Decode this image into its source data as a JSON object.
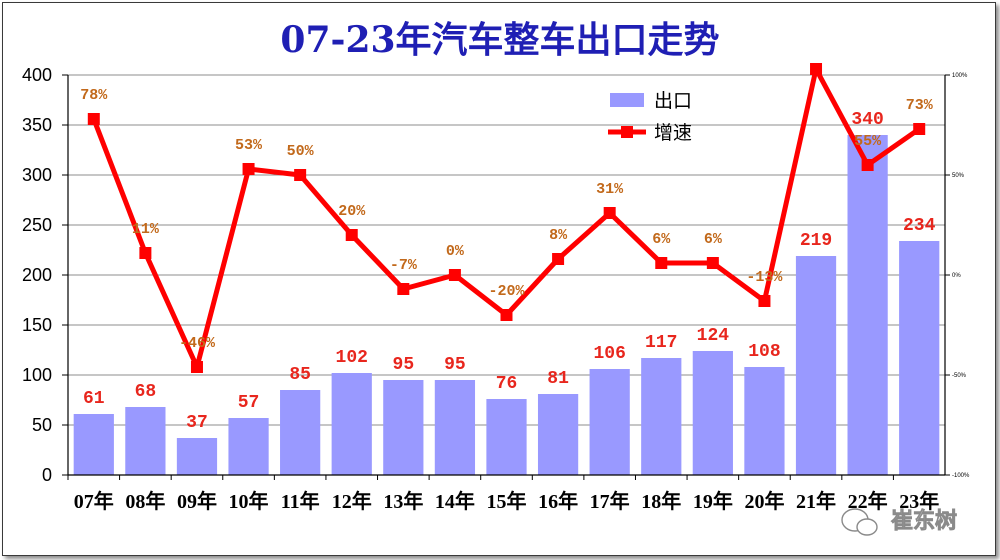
{
  "chart_data": {
    "type": "bar",
    "title": "07-23年汽车整车出口走势",
    "categories": [
      "07年",
      "08年",
      "09年",
      "10年",
      "11年",
      "12年",
      "13年",
      "14年",
      "15年",
      "16年",
      "17年",
      "18年",
      "19年",
      "20年",
      "21年",
      "22年",
      "23年"
    ],
    "series": [
      {
        "name": "出口",
        "type": "bar",
        "axis": "left",
        "values": [
          61,
          68,
          37,
          57,
          85,
          102,
          95,
          95,
          76,
          81,
          106,
          117,
          124,
          108,
          219,
          340,
          234
        ],
        "labels": [
          "61",
          "68",
          "37",
          "57",
          "85",
          "102",
          "95",
          "95",
          "76",
          "81",
          "106",
          "117",
          "124",
          "108",
          "219",
          "340",
          "234"
        ],
        "color": "#9999ff"
      },
      {
        "name": "增速",
        "type": "line",
        "axis": "right",
        "values": [
          78,
          11,
          -46,
          53,
          50,
          20,
          -7,
          0,
          -20,
          8,
          31,
          6,
          6,
          -13,
          103,
          55,
          73
        ],
        "labels": [
          "78%",
          "11%",
          "-46%",
          "53%",
          "50%",
          "20%",
          "-7%",
          "0%",
          "-20%",
          "8%",
          "31%",
          "6%",
          "6%",
          "-13%",
          "",
          "55%",
          "73%"
        ],
        "color": "#ff0000"
      }
    ],
    "y_left": {
      "range": [
        0,
        400
      ],
      "ticks": [
        "0",
        "50",
        "100",
        "150",
        "200",
        "250",
        "300",
        "350",
        "400"
      ]
    },
    "y_right": {
      "range": [
        -100,
        100
      ],
      "ticks": [
        "-100%",
        "-50%",
        "0%",
        "50%",
        "100%"
      ]
    },
    "grid": true,
    "legend": "top-right"
  },
  "watermark": {
    "text": "崔东树",
    "icon": "wechat-icon"
  }
}
